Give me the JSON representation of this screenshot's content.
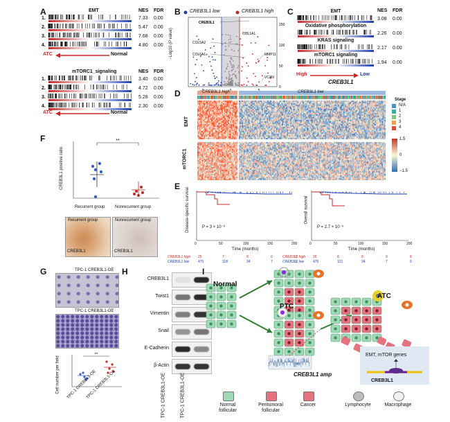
{
  "panels": {
    "a": "A",
    "b": "B",
    "c": "C",
    "d": "D",
    "e": "E",
    "f": "F",
    "g": "G",
    "h": "H",
    "i": "I"
  },
  "panel_a": {
    "emt_title": "EMT",
    "mtor_title": "mTORC1_signaling",
    "col_nes": "NES",
    "col_fdr": "FDR",
    "emt_rows": [
      {
        "idx": "1.",
        "nes": "7.33",
        "fdr": "0.00"
      },
      {
        "idx": "2.",
        "nes": "5.47",
        "fdr": "0.00"
      },
      {
        "idx": "3.",
        "nes": "7.68",
        "fdr": "0.00"
      },
      {
        "idx": "4.",
        "nes": "4.80",
        "fdr": "0.00"
      }
    ],
    "mtor_rows": [
      {
        "idx": "1.",
        "nes": "3.40",
        "fdr": "0.00"
      },
      {
        "idx": "2.",
        "nes": "4.72",
        "fdr": "0.00"
      },
      {
        "idx": "3.",
        "nes": "5.28",
        "fdr": "0.00"
      },
      {
        "idx": "4.",
        "nes": "2.30",
        "fdr": "0.00"
      }
    ],
    "left_label": "ATC",
    "right_label": "Normal"
  },
  "panel_b": {
    "legend_low": "CREB3L1 low",
    "legend_high": "CREB3L1 high",
    "ylabel": "−Log10 (P value)",
    "genes": [
      "CREB3L1",
      "COL1A1",
      "COL5A2",
      "COL6A1",
      "MMP11",
      "VCAN"
    ],
    "x_ticks": [
      "−5",
      "0",
      "5"
    ],
    "y_ticks": [
      "0",
      "50",
      "100",
      "150"
    ]
  },
  "panel_c": {
    "col_nes": "NES",
    "col_fdr": "FDR",
    "rows": [
      {
        "name": "EMT",
        "nes": "3.08",
        "fdr": "0.00"
      },
      {
        "name": "Oxidative phosphorylation",
        "nes": "2.26",
        "fdr": "0.00"
      },
      {
        "name": "KRAS signaling",
        "nes": "2.17",
        "fdr": "0.00"
      },
      {
        "name": "mTORC1 signaling",
        "nes": "1.94",
        "fdr": "0.00"
      }
    ],
    "high": "High",
    "low": "Low",
    "gene": "CREB3L1"
  },
  "panel_d": {
    "group_high": "CREB3L1 high",
    "group_low": "CREB3L1 low",
    "row_emt": "EMT",
    "row_mtor": "mTORC1",
    "stage_title": "Stage",
    "stage_items": [
      "N/A",
      "1",
      "2",
      "3",
      "4"
    ],
    "scale_ticks": [
      "1.5",
      "0",
      "−1.5"
    ]
  },
  "panel_e": {
    "left": {
      "ylabel": "Disease-specific survival",
      "pvalue": "P = 3 × 10⁻⁵",
      "xlabel": "Time (months)",
      "x_ticks": [
        "0",
        "50",
        "100",
        "150",
        "200"
      ],
      "rows": [
        {
          "label": "CREB3L1 high",
          "vals": [
            "25",
            "7",
            "0",
            "0",
            "0"
          ]
        },
        {
          "label": "CREB3L1 low",
          "vals": [
            "475",
            "118",
            "34",
            "7",
            "0"
          ]
        }
      ]
    },
    "right": {
      "ylabel": "Overall survival",
      "pvalue": "P = 2.7 × 10⁻⁵",
      "xlabel": "Time (months)",
      "x_ticks": [
        "0",
        "50",
        "100",
        "150",
        "200"
      ],
      "rows": [
        {
          "label": "CREB3L1 high",
          "vals": [
            "26",
            "8",
            "0",
            "0",
            "0"
          ]
        },
        {
          "label": "CREB3L1 low",
          "vals": [
            "475",
            "121",
            "34",
            "7",
            "0"
          ]
        }
      ]
    }
  },
  "panel_f": {
    "ylabel": "CREB3L1 positive ratio",
    "sig": "**",
    "groups": [
      "Recurrent group",
      "Nonrecurrent group"
    ],
    "img_left_title": "Recurrent group",
    "img_right_title": "Nonrecurrent group",
    "img_left_caption": "CREB3L1",
    "img_right_caption": "CREB3L1"
  },
  "panel_g": {
    "img_top": "TPC-1 CREB3L1-OE",
    "img_bottom": "TPC-1 CREB3L1-OE",
    "ylabel": "Cell number per field",
    "sig": "**",
    "groups": [
      "TPC-1 CREB3L1-OE",
      "TPC-1 CREB3L1-OE"
    ]
  },
  "panel_h": {
    "proteins": [
      "CREB3L1",
      "Twist1",
      "Vimentin",
      "Snail",
      "E-Cadherin",
      "β-Actin"
    ],
    "lanes": [
      "TPC-1 CREB3L1-OE",
      "TPC-1 CREB3L1-OE"
    ]
  },
  "panel_i": {
    "normal": "Normal",
    "ptc": "PTC",
    "atc": "ATC",
    "amp": "CREB3L1 amp",
    "genes_title": "EMT, mTOR genes",
    "tf": "CREB3L1",
    "legend": [
      "Normal follicular",
      "Peritumoral follicular",
      "Cancer",
      "Lymphocyte",
      "Macrophage"
    ]
  },
  "colors": {
    "red": "#c62828",
    "blue": "#1f3fb0",
    "cell_green": "#9fd9b5",
    "cell_red": "#e5727e",
    "orange": "#e8742c"
  }
}
